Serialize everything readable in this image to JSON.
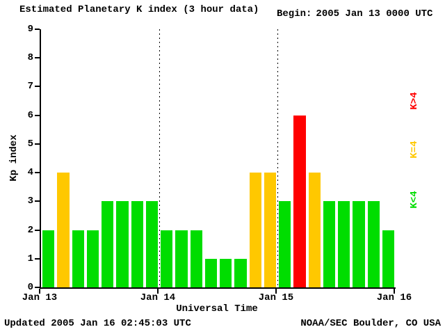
{
  "title": "Estimated Planetary K index (3 hour data)",
  "begin": {
    "label": "Begin:",
    "value": "2005 Jan 13 0000 UTC"
  },
  "footer": {
    "updated": "Updated 2005 Jan 16 02:45:03 UTC",
    "source": "NOAA/SEC Boulder, CO USA"
  },
  "legend": [
    {
      "label": "K>4",
      "color": "#ff0000"
    },
    {
      "label": "K=4",
      "color": "#ffc800"
    },
    {
      "label": "K<4",
      "color": "#00dd00"
    }
  ],
  "chart_data": {
    "type": "bar",
    "title": "Estimated Planetary K index (3 hour data)",
    "xlabel": "Universal Time",
    "ylabel": "Kp index",
    "ylim": [
      0,
      9
    ],
    "y_ticks": [
      0,
      1,
      2,
      3,
      4,
      5,
      6,
      7,
      8,
      9
    ],
    "x_ticks": [
      "Jan 13",
      "Jan 14",
      "Jan 15",
      "Jan 16"
    ],
    "bar_interval_hours": 3,
    "bars_per_day": 8,
    "values": [
      2,
      4,
      2,
      2,
      3,
      3,
      3,
      3,
      2,
      2,
      2,
      1,
      1,
      1,
      4,
      4,
      3,
      6,
      4,
      3,
      3,
      3,
      3,
      2
    ],
    "color_rule": {
      "below4": "#00dd00",
      "equal4": "#ffc800",
      "above4": "#ff0000"
    },
    "grid": "dotted vertical lines at day boundaries",
    "legend_position": "right, rotated"
  }
}
